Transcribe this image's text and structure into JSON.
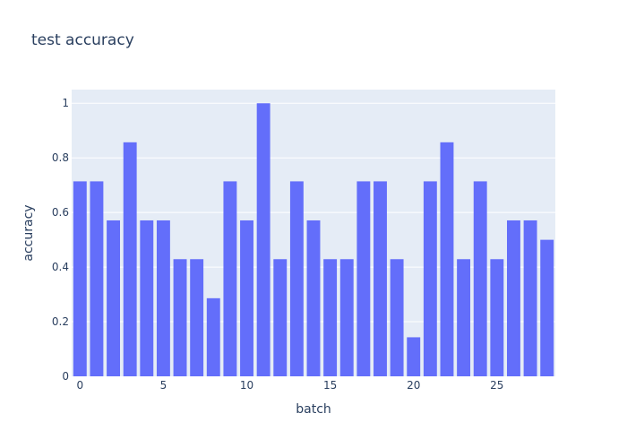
{
  "chart_data": {
    "type": "bar",
    "title": "test accuracy",
    "xlabel": "batch",
    "ylabel": "accuracy",
    "x": [
      0,
      1,
      2,
      3,
      4,
      5,
      6,
      7,
      8,
      9,
      10,
      11,
      12,
      13,
      14,
      15,
      16,
      17,
      18,
      19,
      20,
      21,
      22,
      23,
      24,
      25,
      26,
      27,
      28
    ],
    "values": [
      0.714,
      0.714,
      0.571,
      0.857,
      0.571,
      0.571,
      0.429,
      0.429,
      0.286,
      0.714,
      0.571,
      1.0,
      0.429,
      0.714,
      0.571,
      0.429,
      0.429,
      0.714,
      0.714,
      0.429,
      0.143,
      0.714,
      0.857,
      0.429,
      0.714,
      0.429,
      0.571,
      0.571,
      0.5
    ],
    "xlim": [
      -0.5,
      28.5
    ],
    "ylim": [
      0,
      1.05
    ],
    "x_ticks": [
      0,
      5,
      10,
      15,
      20,
      25
    ],
    "y_ticks": [
      0,
      0.2,
      0.4,
      0.6,
      0.8,
      1
    ],
    "grid": true,
    "colors": {
      "bar": "#636efa",
      "plot_bg": "#e5ecf6",
      "grid": "#ffffff",
      "text": "#2a3f5f"
    }
  }
}
